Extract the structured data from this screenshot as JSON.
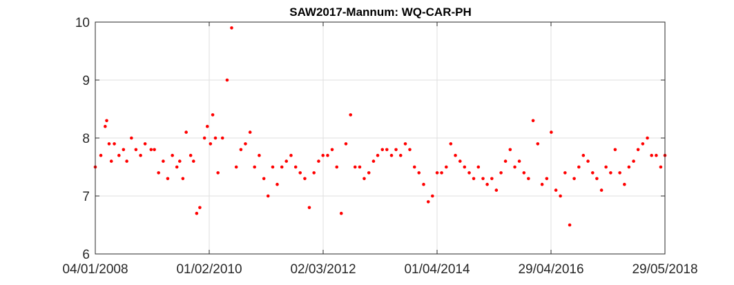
{
  "chart_data": {
    "type": "scatter",
    "title": "SAW2017-Mannum: WQ-CAR-PH",
    "xlabel": "",
    "ylabel": "",
    "x_axis": {
      "type": "date",
      "range": [
        "2008-01-04",
        "2018-05-29"
      ],
      "tick_labels": [
        "04/01/2008",
        "01/02/2010",
        "02/03/2012",
        "01/04/2014",
        "29/04/2016",
        "29/05/2018"
      ]
    },
    "ylim": [
      6,
      10
    ],
    "yticks": [
      "6",
      "7",
      "8",
      "9",
      "10"
    ],
    "grid": true,
    "marker_color": "#ff0000",
    "series": [
      {
        "x": [
          "2008-01-04",
          "2008-02-10",
          "2008-03-10",
          "2008-03-20",
          "2008-04-05",
          "2008-04-20",
          "2008-05-10",
          "2008-06-10",
          "2008-07-10",
          "2008-08-01",
          "2008-09-01",
          "2008-10-01",
          "2008-11-01",
          "2008-12-01",
          "2009-01-10",
          "2009-02-01",
          "2009-03-01",
          "2009-04-01",
          "2009-05-01",
          "2009-06-01",
          "2009-07-01",
          "2009-07-20",
          "2009-08-10",
          "2009-09-01",
          "2009-10-01",
          "2009-10-20",
          "2009-11-10",
          "2009-12-01",
          "2010-01-01",
          "2010-01-20",
          "2010-02-10",
          "2010-02-25",
          "2010-03-15",
          "2010-04-01",
          "2010-05-01",
          "2010-06-01",
          "2010-07-01",
          "2010-08-01",
          "2010-09-01",
          "2010-10-01",
          "2010-11-01",
          "2010-12-01",
          "2011-01-01",
          "2011-02-01",
          "2011-03-01",
          "2011-04-01",
          "2011-05-01",
          "2011-06-01",
          "2011-07-01",
          "2011-08-01",
          "2011-09-01",
          "2011-10-01",
          "2011-11-01",
          "2011-12-01",
          "2012-01-01",
          "2012-02-01",
          "2012-03-01",
          "2012-04-01",
          "2012-05-01",
          "2012-06-01",
          "2012-07-01",
          "2012-08-01",
          "2012-09-01",
          "2012-10-01",
          "2012-11-01",
          "2012-12-01",
          "2013-01-01",
          "2013-02-01",
          "2013-03-01",
          "2013-04-01",
          "2013-05-01",
          "2013-06-01",
          "2013-07-01",
          "2013-08-01",
          "2013-09-01",
          "2013-10-01",
          "2013-11-01",
          "2013-12-01",
          "2014-01-01",
          "2014-02-01",
          "2014-03-01",
          "2014-04-01",
          "2014-05-01",
          "2014-06-01",
          "2014-07-01",
          "2014-08-01",
          "2014-09-01",
          "2014-10-01",
          "2014-11-01",
          "2014-12-01",
          "2015-01-01",
          "2015-02-01",
          "2015-03-01",
          "2015-04-01",
          "2015-05-01",
          "2015-06-01",
          "2015-07-01",
          "2015-08-01",
          "2015-09-01",
          "2015-10-01",
          "2015-11-01",
          "2015-12-01",
          "2016-01-01",
          "2016-02-01",
          "2016-03-01",
          "2016-04-01",
          "2016-05-01",
          "2016-06-01",
          "2016-07-01",
          "2016-08-01",
          "2016-09-01",
          "2016-10-01",
          "2016-11-01",
          "2016-12-01",
          "2017-01-01",
          "2017-02-01",
          "2017-03-01",
          "2017-04-01",
          "2017-05-01",
          "2017-06-01",
          "2017-07-01",
          "2017-08-01",
          "2017-09-01",
          "2017-10-01",
          "2017-11-01",
          "2017-12-01",
          "2018-01-01",
          "2018-02-01",
          "2018-03-01",
          "2018-04-01",
          "2018-05-01",
          "2018-05-29"
        ],
        "y": [
          7.5,
          7.7,
          8.2,
          8.3,
          7.9,
          7.6,
          7.9,
          7.7,
          7.8,
          7.6,
          8.0,
          7.8,
          7.7,
          7.9,
          7.8,
          7.8,
          7.4,
          7.6,
          7.3,
          7.7,
          7.5,
          7.6,
          7.3,
          8.1,
          7.7,
          7.6,
          6.7,
          6.8,
          8.0,
          8.2,
          7.9,
          8.4,
          8.0,
          7.4,
          8.0,
          9.0,
          9.9,
          7.5,
          7.8,
          7.9,
          8.1,
          7.5,
          7.7,
          7.3,
          7.0,
          7.5,
          7.2,
          7.5,
          7.6,
          7.7,
          7.5,
          7.4,
          7.3,
          6.8,
          7.4,
          7.6,
          7.7,
          7.7,
          7.8,
          7.5,
          6.7,
          7.9,
          8.4,
          7.5,
          7.5,
          7.3,
          7.4,
          7.6,
          7.7,
          7.8,
          7.8,
          7.7,
          7.8,
          7.7,
          7.9,
          7.8,
          7.5,
          7.4,
          7.2,
          6.9,
          7.0,
          7.4,
          7.4,
          7.5,
          7.9,
          7.7,
          7.6,
          7.5,
          7.4,
          7.3,
          7.5,
          7.3,
          7.2,
          7.3,
          7.1,
          7.4,
          7.6,
          7.8,
          7.5,
          7.6,
          7.4,
          7.3,
          8.3,
          7.9,
          7.2,
          7.3,
          8.1,
          7.1,
          7.0,
          7.4,
          6.5,
          7.3,
          7.5,
          7.7,
          7.6,
          7.4,
          7.3,
          7.1,
          7.5,
          7.4,
          7.8,
          7.4,
          7.2,
          7.5,
          7.6,
          7.8,
          7.9,
          8.0,
          7.7,
          7.7,
          7.5,
          7.7
        ]
      }
    ]
  }
}
